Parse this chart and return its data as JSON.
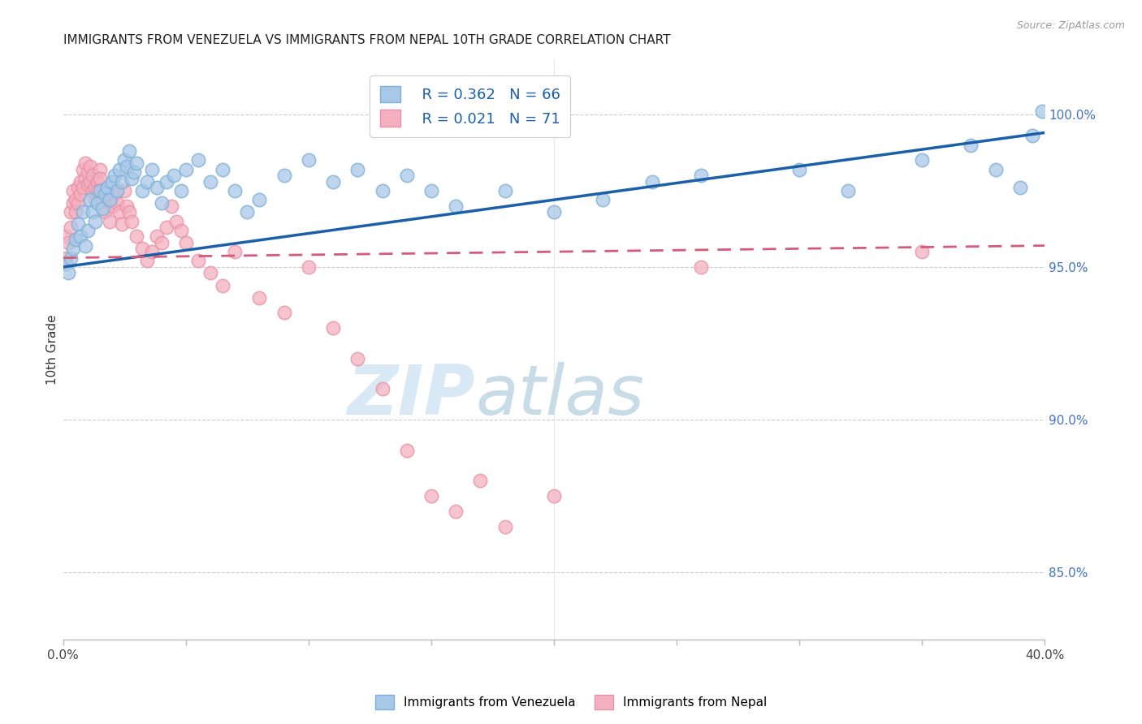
{
  "title": "IMMIGRANTS FROM VENEZUELA VS IMMIGRANTS FROM NEPAL 10TH GRADE CORRELATION CHART",
  "source": "Source: ZipAtlas.com",
  "ylabel": "10th Grade",
  "ylabel_ticks": [
    "85.0%",
    "90.0%",
    "95.0%",
    "100.0%"
  ],
  "ylabel_vals": [
    0.85,
    0.9,
    0.95,
    1.0
  ],
  "xmin": 0.0,
  "xmax": 0.4,
  "ymin": 0.828,
  "ymax": 1.018,
  "legend_blue_r": "R = 0.362",
  "legend_blue_n": "N = 66",
  "legend_pink_r": "R = 0.021",
  "legend_pink_n": "N = 71",
  "legend_label_blue": "Immigrants from Venezuela",
  "legend_label_pink": "Immigrants from Nepal",
  "blue_trend_x": [
    0.0,
    0.4
  ],
  "blue_trend_y": [
    0.95,
    0.994
  ],
  "pink_trend_x": [
    0.0,
    0.4
  ],
  "pink_trend_y": [
    0.953,
    0.957
  ],
  "blue_scatter_x": [
    0.001,
    0.002,
    0.003,
    0.004,
    0.005,
    0.006,
    0.007,
    0.008,
    0.009,
    0.01,
    0.011,
    0.012,
    0.013,
    0.014,
    0.015,
    0.016,
    0.017,
    0.018,
    0.019,
    0.02,
    0.021,
    0.022,
    0.023,
    0.024,
    0.025,
    0.026,
    0.027,
    0.028,
    0.029,
    0.03,
    0.032,
    0.034,
    0.036,
    0.038,
    0.04,
    0.042,
    0.045,
    0.048,
    0.05,
    0.055,
    0.06,
    0.065,
    0.07,
    0.075,
    0.08,
    0.09,
    0.1,
    0.11,
    0.12,
    0.13,
    0.14,
    0.15,
    0.16,
    0.18,
    0.2,
    0.22,
    0.24,
    0.26,
    0.3,
    0.32,
    0.35,
    0.37,
    0.38,
    0.39,
    0.395,
    0.399
  ],
  "blue_scatter_y": [
    0.951,
    0.948,
    0.953,
    0.956,
    0.959,
    0.964,
    0.96,
    0.968,
    0.957,
    0.962,
    0.972,
    0.968,
    0.965,
    0.971,
    0.975,
    0.969,
    0.974,
    0.976,
    0.972,
    0.978,
    0.98,
    0.975,
    0.982,
    0.978,
    0.985,
    0.983,
    0.988,
    0.979,
    0.981,
    0.984,
    0.975,
    0.978,
    0.982,
    0.976,
    0.971,
    0.978,
    0.98,
    0.975,
    0.982,
    0.985,
    0.978,
    0.982,
    0.975,
    0.968,
    0.972,
    0.98,
    0.985,
    0.978,
    0.982,
    0.975,
    0.98,
    0.975,
    0.97,
    0.975,
    0.968,
    0.972,
    0.978,
    0.98,
    0.982,
    0.975,
    0.985,
    0.99,
    0.982,
    0.976,
    0.993,
    1.001
  ],
  "pink_scatter_x": [
    0.001,
    0.001,
    0.002,
    0.003,
    0.003,
    0.004,
    0.004,
    0.005,
    0.005,
    0.006,
    0.006,
    0.007,
    0.007,
    0.008,
    0.008,
    0.009,
    0.009,
    0.01,
    0.01,
    0.011,
    0.011,
    0.012,
    0.012,
    0.013,
    0.013,
    0.014,
    0.014,
    0.015,
    0.015,
    0.016,
    0.017,
    0.018,
    0.019,
    0.02,
    0.021,
    0.022,
    0.023,
    0.024,
    0.025,
    0.026,
    0.027,
    0.028,
    0.03,
    0.032,
    0.034,
    0.036,
    0.038,
    0.04,
    0.042,
    0.044,
    0.046,
    0.048,
    0.05,
    0.055,
    0.06,
    0.065,
    0.07,
    0.08,
    0.09,
    0.1,
    0.11,
    0.12,
    0.13,
    0.14,
    0.15,
    0.16,
    0.17,
    0.18,
    0.2,
    0.26,
    0.35
  ],
  "pink_scatter_y": [
    0.96,
    0.953,
    0.958,
    0.968,
    0.963,
    0.971,
    0.975,
    0.972,
    0.968,
    0.976,
    0.971,
    0.978,
    0.974,
    0.982,
    0.976,
    0.984,
    0.979,
    0.981,
    0.977,
    0.983,
    0.978,
    0.975,
    0.98,
    0.976,
    0.972,
    0.978,
    0.975,
    0.982,
    0.979,
    0.975,
    0.968,
    0.972,
    0.965,
    0.97,
    0.974,
    0.971,
    0.968,
    0.964,
    0.975,
    0.97,
    0.968,
    0.965,
    0.96,
    0.956,
    0.952,
    0.955,
    0.96,
    0.958,
    0.963,
    0.97,
    0.965,
    0.962,
    0.958,
    0.952,
    0.948,
    0.944,
    0.955,
    0.94,
    0.935,
    0.95,
    0.93,
    0.92,
    0.91,
    0.89,
    0.875,
    0.87,
    0.88,
    0.865,
    0.875,
    0.95,
    0.955
  ],
  "blue_color": "#a8c8e8",
  "pink_color": "#f4b0c0",
  "blue_edge_color": "#7bafd4",
  "pink_edge_color": "#e890a8",
  "blue_line_color": "#1a5fa8",
  "pink_line_color": "#d45a7a",
  "watermark_zip": "ZIP",
  "watermark_atlas": "atlas",
  "title_fontsize": 11,
  "label_fontsize": 10
}
